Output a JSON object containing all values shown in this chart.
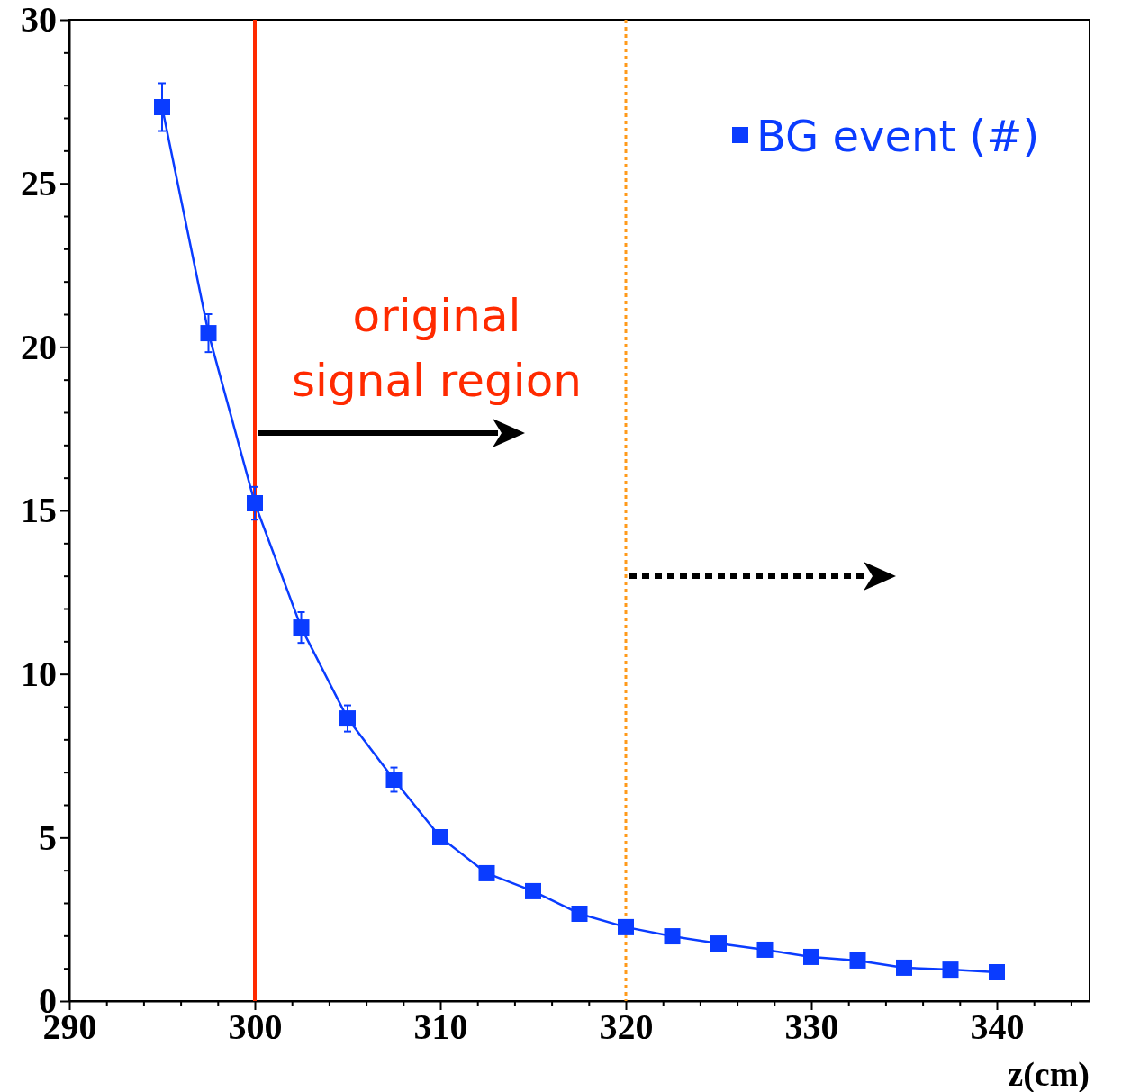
{
  "chart_data": {
    "type": "line",
    "xlabel": "z(cm)",
    "x": [
      295,
      297.5,
      300,
      302.5,
      305,
      307.5,
      310,
      312.5,
      315,
      317.5,
      320,
      322.5,
      325,
      327.5,
      330,
      332.5,
      335,
      337.5,
      340
    ],
    "series": [
      {
        "name": "BG event (#)",
        "color": "#0a3cff",
        "values": [
          27.33,
          20.42,
          15.22,
          11.42,
          8.64,
          6.77,
          5.01,
          3.91,
          3.36,
          2.67,
          2.26,
          1.98,
          1.76,
          1.57,
          1.35,
          1.24,
          1.02,
          0.96,
          0.88
        ],
        "errors": [
          0.73,
          0.58,
          0.5,
          0.47,
          0.4,
          0.37,
          null,
          null,
          null,
          null,
          null,
          null,
          null,
          null,
          null,
          null,
          null,
          null,
          null
        ]
      }
    ],
    "xlim": [
      290,
      345
    ],
    "ylim": [
      0,
      30
    ],
    "xticks": [
      290,
      {
        "value": 292,
        "label": null
      },
      {
        "value": 294,
        "label": null
      },
      {
        "value": 296,
        "label": null
      },
      {
        "value": 298,
        "label": null
      },
      300,
      {
        "value": 302,
        "label": null
      },
      {
        "value": 304,
        "label": null
      },
      {
        "value": 306,
        "label": null
      },
      {
        "value": 308,
        "label": null
      },
      310,
      {
        "value": 312,
        "label": null
      },
      {
        "value": 314,
        "label": null
      },
      {
        "value": 316,
        "label": null
      },
      {
        "value": 318,
        "label": null
      },
      320,
      {
        "value": 322,
        "label": null
      },
      {
        "value": 324,
        "label": null
      },
      {
        "value": 326,
        "label": null
      },
      {
        "value": 328,
        "label": null
      },
      330,
      {
        "value": 332,
        "label": null
      },
      {
        "value": 334,
        "label": null
      },
      {
        "value": 336,
        "label": null
      },
      {
        "value": 338,
        "label": null
      },
      340,
      {
        "value": 342,
        "label": null
      },
      {
        "value": 344,
        "label": null
      }
    ],
    "yticks": [
      0,
      {
        "value": 1,
        "label": null
      },
      {
        "value": 2,
        "label": null
      },
      {
        "value": 3,
        "label": null
      },
      {
        "value": 4,
        "label": null
      },
      5,
      {
        "value": 6,
        "label": null
      },
      {
        "value": 7,
        "label": null
      },
      {
        "value": 8,
        "label": null
      },
      {
        "value": 9,
        "label": null
      },
      10,
      {
        "value": 11,
        "label": null
      },
      {
        "value": 12,
        "label": null
      },
      {
        "value": 13,
        "label": null
      },
      {
        "value": 14,
        "label": null
      },
      15,
      {
        "value": 16,
        "label": null
      },
      {
        "value": 17,
        "label": null
      },
      {
        "value": 18,
        "label": null
      },
      {
        "value": 19,
        "label": null
      },
      20,
      {
        "value": 21,
        "label": null
      },
      {
        "value": 22,
        "label": null
      },
      {
        "value": 23,
        "label": null
      },
      {
        "value": 24,
        "label": null
      },
      25,
      {
        "value": 26,
        "label": null
      },
      {
        "value": 27,
        "label": null
      },
      {
        "value": 28,
        "label": null
      },
      {
        "value": 29,
        "label": null
      },
      30
    ],
    "ref_lines": [
      {
        "axis": "x",
        "value": 300,
        "color": "#ff2a00",
        "line_style": "solid"
      },
      {
        "axis": "x",
        "value": 320,
        "color": "#ff9a1a",
        "line_style": "dotted"
      }
    ],
    "annotations": [
      "original\nsignal region"
    ],
    "legend": "top right",
    "marker": "square",
    "line_style": "solid",
    "grid": false
  }
}
